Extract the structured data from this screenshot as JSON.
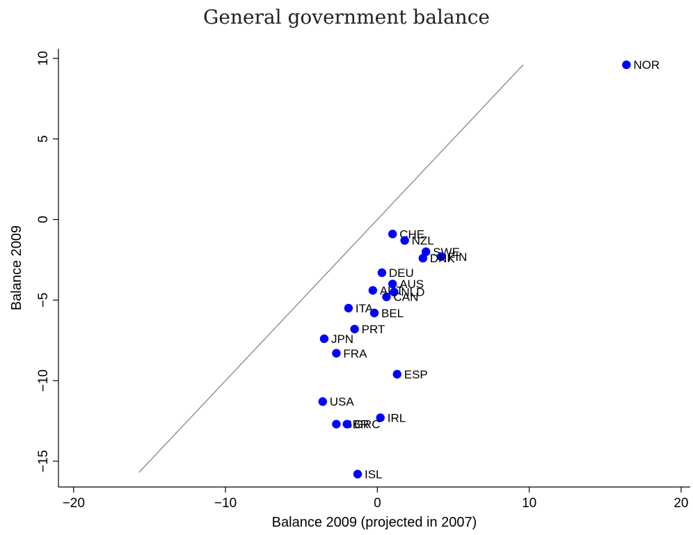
{
  "chart_data": {
    "type": "scatter",
    "title": "General government balance",
    "xlabel": "Balance 2009 (projected in 2007)",
    "ylabel": "Balance 2009",
    "xlim": [
      -21,
      20.6
    ],
    "ylim": [
      -16.6,
      10.6
    ],
    "xticks": [
      -20,
      -10,
      0,
      10,
      20
    ],
    "yticks": [
      -15,
      -10,
      -5,
      0,
      5,
      10
    ],
    "grid": false,
    "legend": "none",
    "point_color": "#0000ff",
    "reference_line": {
      "from": [
        -15.7,
        -15.7
      ],
      "to": [
        9.6,
        9.6
      ],
      "color": "#8c8c8c"
    },
    "points": [
      {
        "label": "NOR",
        "x": 16.4,
        "y": 9.6
      },
      {
        "label": "CHE",
        "x": 1.0,
        "y": -0.9
      },
      {
        "label": "NZL",
        "x": 1.8,
        "y": -1.3
      },
      {
        "label": "SWE",
        "x": 3.2,
        "y": -2.0
      },
      {
        "label": "FIN",
        "x": 4.2,
        "y": -2.3
      },
      {
        "label": "DNK",
        "x": 3.0,
        "y": -2.4
      },
      {
        "label": "DEU",
        "x": 0.3,
        "y": -3.3
      },
      {
        "label": "AUS",
        "x": 1.0,
        "y": -4.0
      },
      {
        "label": "AUT",
        "x": -0.3,
        "y": -4.4
      },
      {
        "label": "NLD",
        "x": 1.1,
        "y": -4.5
      },
      {
        "label": "CAN",
        "x": 0.6,
        "y": -4.8
      },
      {
        "label": "ITA",
        "x": -1.9,
        "y": -5.5
      },
      {
        "label": "BEL",
        "x": -0.2,
        "y": -5.8
      },
      {
        "label": "PRT",
        "x": -1.5,
        "y": -6.8
      },
      {
        "label": "JPN",
        "x": -3.5,
        "y": -7.4
      },
      {
        "label": "FRA",
        "x": -2.7,
        "y": -8.3
      },
      {
        "label": "ESP",
        "x": 1.3,
        "y": -9.6
      },
      {
        "label": "USA",
        "x": -3.6,
        "y": -11.3
      },
      {
        "label": "IRL",
        "x": 0.2,
        "y": -12.3
      },
      {
        "label": "GBR",
        "x": -2.7,
        "y": -12.7
      },
      {
        "label": "GRC",
        "x": -2.0,
        "y": -12.7
      },
      {
        "label": "ISL",
        "x": -1.3,
        "y": -15.8
      }
    ]
  }
}
